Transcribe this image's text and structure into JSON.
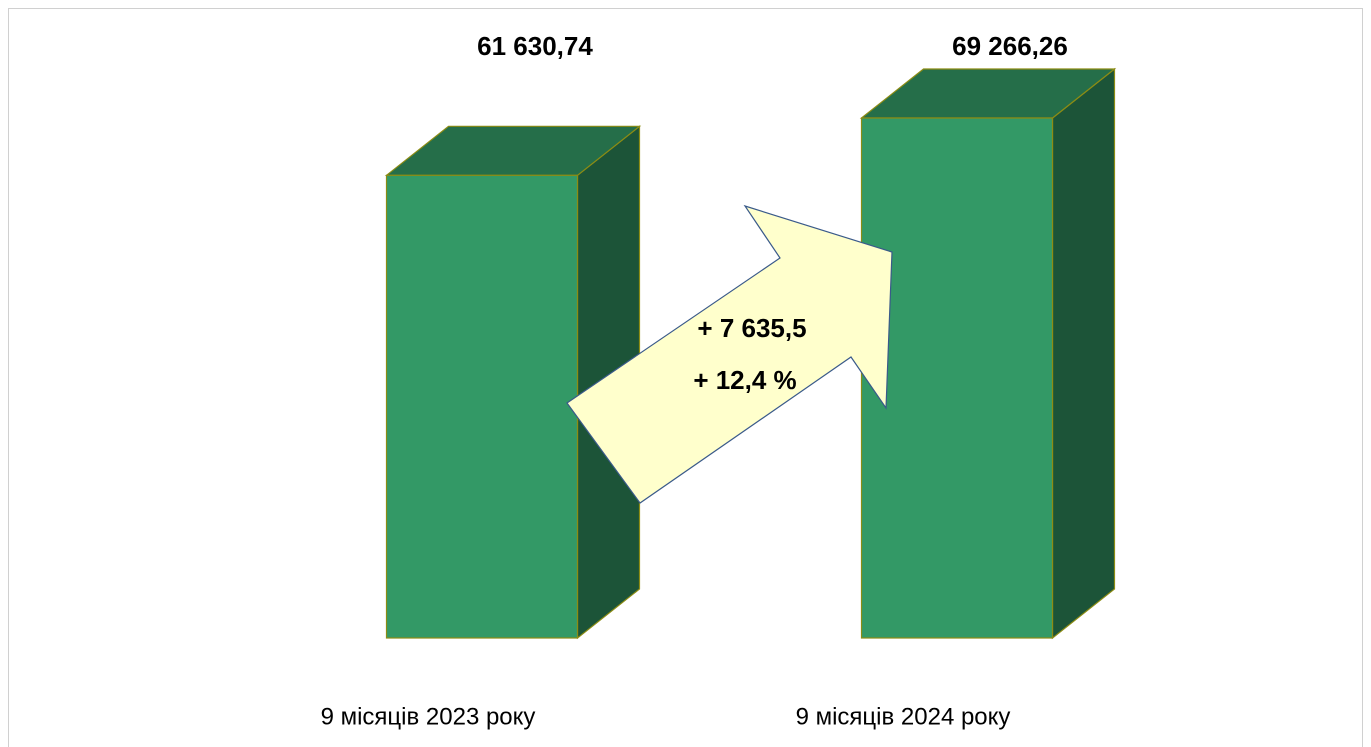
{
  "chart_data": {
    "type": "bar3d",
    "categories": [
      "9 місяців 2023 року",
      "9 місяців 2024 року"
    ],
    "values": [
      61630.74,
      69266.26
    ],
    "value_labels": [
      "61 630,74",
      "69 266,26"
    ],
    "color": "#339966",
    "annotations": [
      "+ 7 635,5",
      "+ 12,4 %"
    ]
  }
}
